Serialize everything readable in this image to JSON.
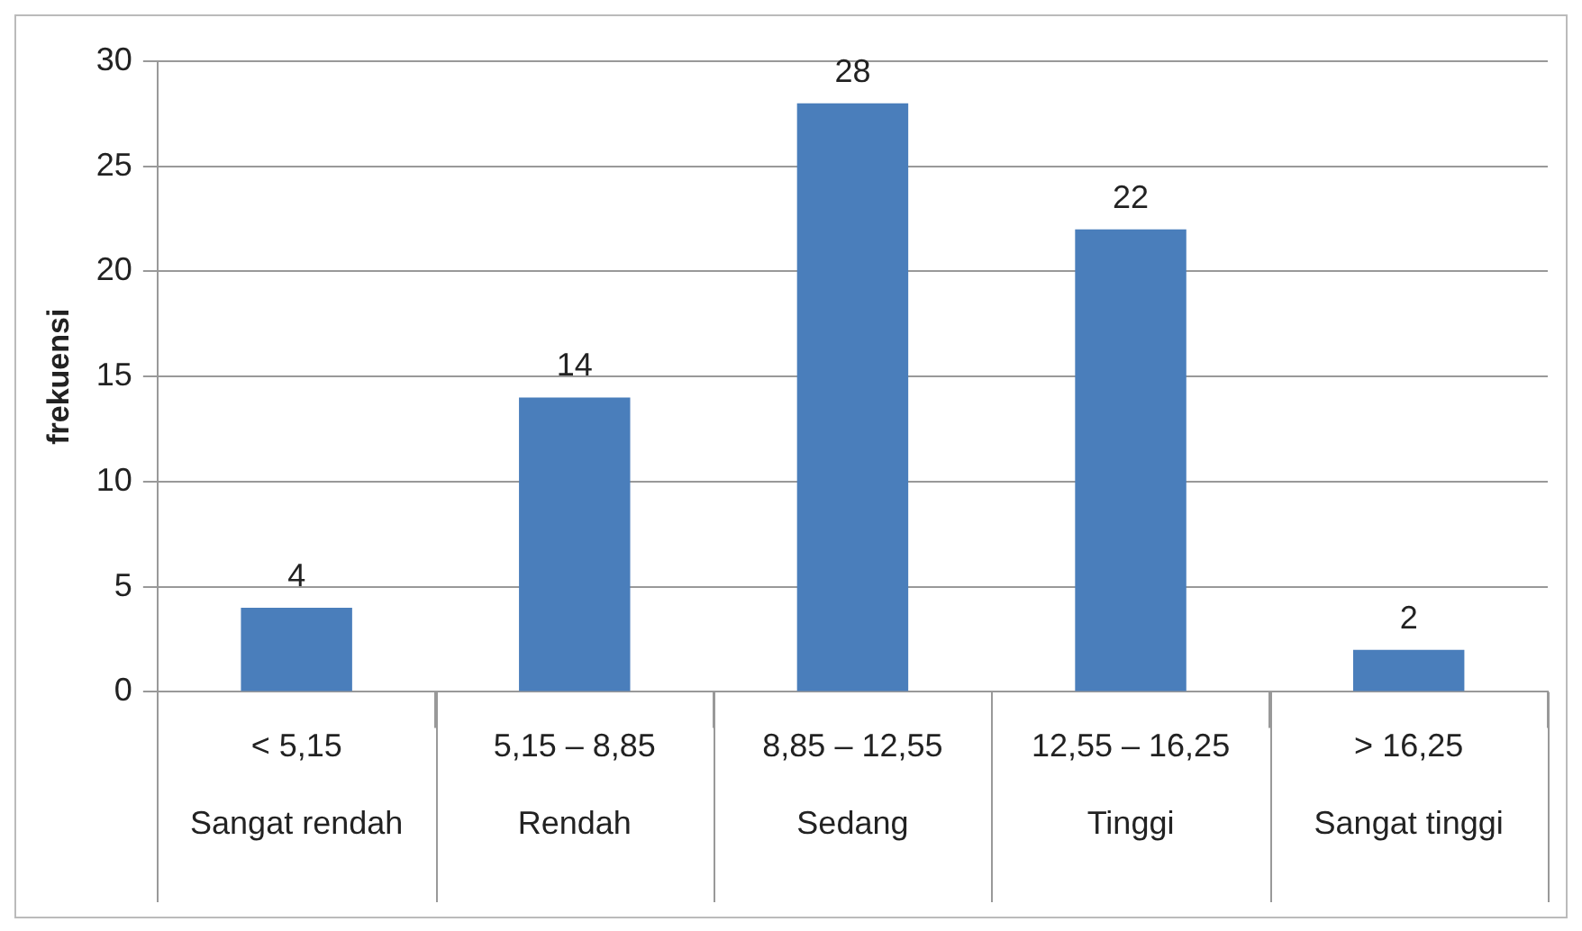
{
  "chart_data": {
    "type": "bar",
    "ylabel": "frekuensi",
    "categories": [
      "< 5,15\n\nSangat rendah",
      "5,15 – 8,85\n\nRendah",
      "8,85 – 12,55\n\nSedang",
      "12,55 – 16,25\n\nTinggi",
      "> 16,25\n\nSangat tinggi"
    ],
    "values": [
      4,
      14,
      28,
      22,
      2
    ],
    "color": "#4a7ebb",
    "ylim": [
      0,
      30
    ],
    "yticks": [
      0,
      5,
      10,
      15,
      20,
      25,
      30
    ],
    "grid": "y",
    "legend": false,
    "data_labels": true
  }
}
